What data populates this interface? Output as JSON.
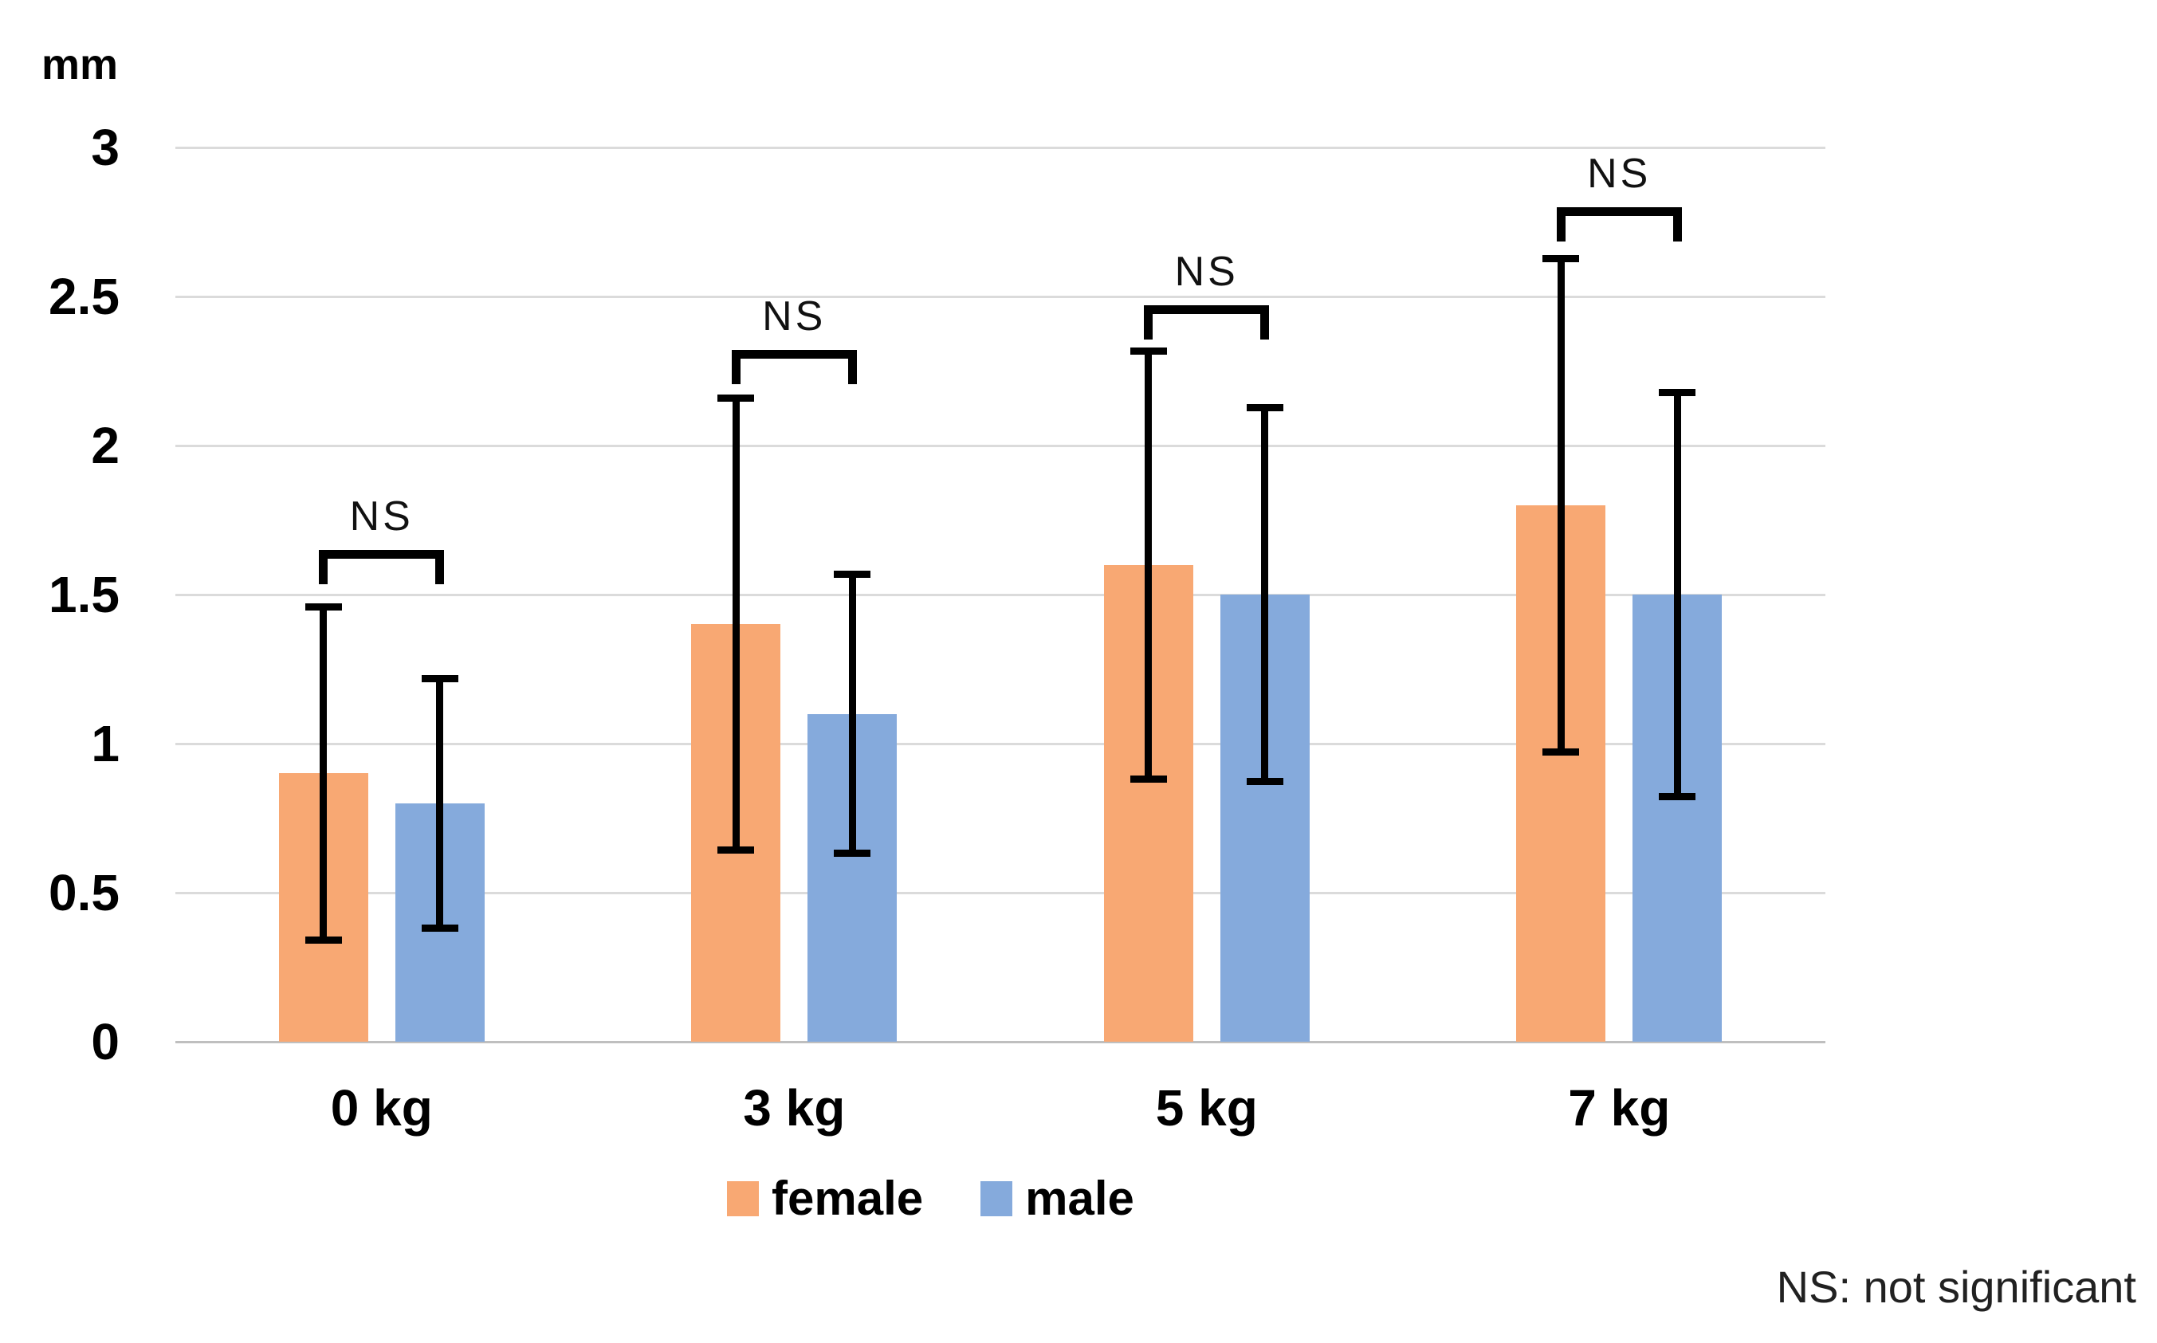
{
  "figure": {
    "unit_label": "mm",
    "footnote": "NS: not significant",
    "background_color": "#FFFFFF",
    "gridline_color": "#DBDBDB",
    "axis_line_color": "#BFBFBF",
    "error_bar_color": "#000000",
    "text_color": "#000000"
  },
  "chart_data": {
    "type": "bar",
    "title": "",
    "xlabel": "",
    "ylabel": "mm",
    "ylim": [
      0,
      3
    ],
    "ytick_interval": 0.5,
    "ytick_labels": [
      "0",
      "0.5",
      "1",
      "1.5",
      "2",
      "2.5",
      "3"
    ],
    "grid": true,
    "legend_position": "bottom",
    "categories": [
      "0 kg",
      "3 kg",
      "5 kg",
      "7 kg"
    ],
    "series": [
      {
        "name": "female",
        "color": "#F8A873",
        "values": [
          0.9,
          1.4,
          1.6,
          1.8
        ],
        "error_low": [
          0.33,
          0.63,
          0.87,
          0.96
        ],
        "error_high": [
          1.47,
          2.17,
          2.33,
          2.64
        ]
      },
      {
        "name": "male",
        "color": "#85AADC",
        "values": [
          0.8,
          1.1,
          1.5,
          1.5
        ],
        "error_low": [
          0.37,
          0.62,
          0.86,
          0.81
        ],
        "error_high": [
          1.23,
          1.58,
          2.14,
          2.19
        ]
      }
    ],
    "significance_brackets": [
      {
        "category": "0 kg",
        "label": "NS",
        "compares": [
          "female",
          "male"
        ],
        "bracket_top_mm": 1.65
      },
      {
        "category": "3 kg",
        "label": "NS",
        "compares": [
          "female",
          "male"
        ],
        "bracket_top_mm": 2.32
      },
      {
        "category": "5 kg",
        "label": "NS",
        "compares": [
          "female",
          "male"
        ],
        "bracket_top_mm": 2.47
      },
      {
        "category": "7 kg",
        "label": "NS",
        "compares": [
          "female",
          "male"
        ],
        "bracket_top_mm": 2.8
      }
    ]
  }
}
